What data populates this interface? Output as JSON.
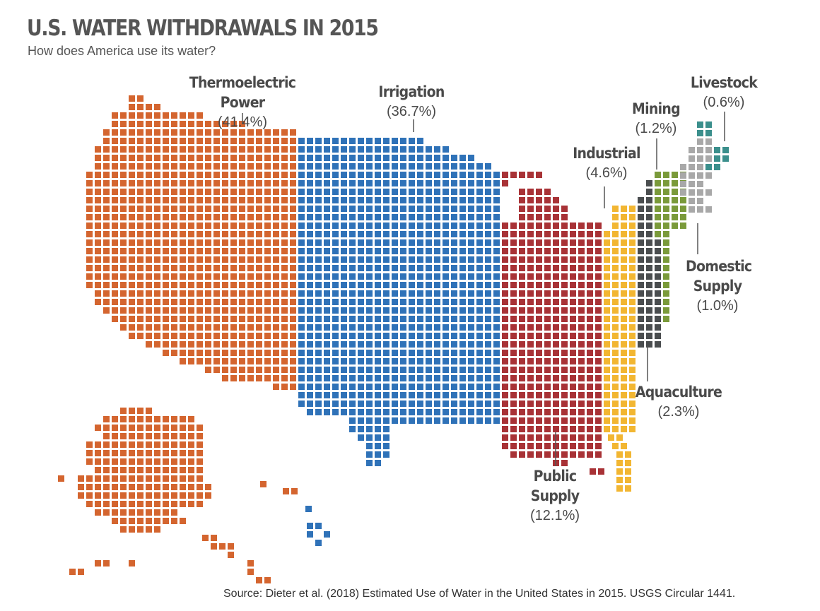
{
  "header": {
    "title": "U.S. WATER WITHDRAWALS IN 2015",
    "subtitle": "How does America use its water?"
  },
  "source": "Source: Dieter et al. (2018) Estimated Use of Water in the United States in 2015. USGS Circular 1441.",
  "chart_data": {
    "type": "waffle-map",
    "title": "U.S. WATER WITHDRAWALS IN 2015",
    "subtitle": "How does America use its water?",
    "unit": "%",
    "categories": [
      {
        "name": "Thermoelectric Power",
        "percent_label": "(41.4%)",
        "value": 41.4,
        "color": "#d4652f"
      },
      {
        "name": "Irrigation",
        "percent_label": "(36.7%)",
        "value": 36.7,
        "color": "#2f72b8"
      },
      {
        "name": "Public Supply",
        "percent_label": "(12.1%)",
        "value": 12.1,
        "color": "#a83236"
      },
      {
        "name": "Industrial",
        "percent_label": "(4.6%)",
        "value": 4.6,
        "color": "#f2b632"
      },
      {
        "name": "Aquaculture",
        "percent_label": "(2.3%)",
        "value": 2.3,
        "color": "#4a4d4f"
      },
      {
        "name": "Mining",
        "percent_label": "(1.2%)",
        "value": 1.2,
        "color": "#7a9a3a"
      },
      {
        "name": "Domestic Supply",
        "percent_label": "(1.0%)",
        "value": 1.0,
        "color": "#a8a8a8"
      },
      {
        "name": "Livestock",
        "percent_label": "(0.6%)",
        "value": 0.6,
        "color": "#3b8f8c"
      }
    ]
  }
}
